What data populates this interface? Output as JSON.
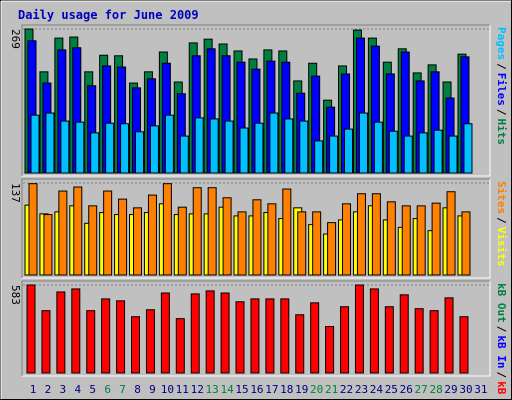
{
  "chart_data": {
    "type": "bar",
    "title": "Daily usage for June 2009",
    "legend_separator": "/",
    "categories": [
      "1",
      "2",
      "3",
      "4",
      "5",
      "6",
      "7",
      "8",
      "9",
      "10",
      "11",
      "12",
      "13",
      "14",
      "15",
      "16",
      "17",
      "18",
      "19",
      "20",
      "21",
      "22",
      "23",
      "24",
      "25",
      "26",
      "27",
      "28",
      "29",
      "30",
      "31"
    ],
    "category_colors": [
      "#000080",
      "#000080",
      "#000080",
      "#000080",
      "#000080",
      "#008040",
      "#008040",
      "#000080",
      "#000080",
      "#000080",
      "#000080",
      "#000080",
      "#008040",
      "#008040",
      "#000080",
      "#000080",
      "#000080",
      "#000080",
      "#000080",
      "#008040",
      "#008040",
      "#000080",
      "#000080",
      "#000080",
      "#000080",
      "#000080",
      "#008040",
      "#008040",
      "#000080",
      "#000080",
      "#000080"
    ],
    "panels": [
      {
        "ylim": [
          0,
          269
        ],
        "yticks": [
          269
        ],
        "series": [
          {
            "name": "Hits",
            "color": "#008040",
            "values": [
              269,
              189,
              252,
              254,
              189,
              220,
              219,
              168,
              189,
              226,
              170,
              243,
              250,
              241,
              228,
              213,
              230,
              228,
              172,
              205,
              136,
              200,
              267,
              252,
              207,
              232,
              187,
              202,
              170,
              222,
              null
            ]
          },
          {
            "name": "Files",
            "color": "#0000ff",
            "values": [
              247,
              168,
              230,
              234,
              163,
              200,
              198,
              159,
              176,
              205,
              148,
              219,
              232,
              219,
              207,
              194,
              209,
              207,
              149,
              181,
              123,
              185,
              252,
              237,
              185,
              226,
              172,
              189,
              140,
              217,
              null
            ]
          },
          {
            "name": "Pages",
            "color": "#00c0ff",
            "values": [
              108,
              112,
              97,
              95,
              75,
              93,
              92,
              77,
              88,
              108,
              69,
              103,
              101,
              97,
              84,
              93,
              112,
              101,
              97,
              60,
              69,
              82,
              112,
              95,
              78,
              69,
              75,
              80,
              69,
              92,
              null
            ]
          }
        ]
      },
      {
        "ylim": [
          0,
          137
        ],
        "yticks": [
          137
        ],
        "series": [
          {
            "name": "Visits",
            "color": "#ffff00",
            "values": [
              104,
              91,
              94,
              103,
              77,
              93,
              90,
              90,
              93,
              106,
              90,
              91,
              91,
              101,
              88,
              88,
              93,
              84,
              100,
              75,
              61,
              82,
              94,
              103,
              82,
              71,
              84,
              66,
              100,
              88,
              null
            ]
          },
          {
            "name": "Sites",
            "color": "#ff8000",
            "values": [
              136,
              90,
              125,
              131,
              103,
              125,
              113,
              100,
              119,
              136,
              101,
              130,
              130,
              115,
              94,
              112,
              106,
              128,
              94,
              94,
              78,
              106,
              121,
              121,
              109,
              103,
              103,
              107,
              124,
              94,
              null
            ]
          }
        ]
      },
      {
        "ylim": [
          0,
          583
        ],
        "yticks": [
          583
        ],
        "series": [
          {
            "name": "kB F",
            "color": "#ff0000",
            "values": [
              583,
              413,
              537,
              557,
              413,
              491,
              478,
              373,
              419,
              530,
              360,
              524,
              544,
              530,
              472,
              491,
              491,
              491,
              386,
              465,
              308,
              439,
              583,
              557,
              439,
              518,
              426,
              413,
              498,
              373,
              null
            ]
          }
        ],
        "legend_only": [
          {
            "name": "kB In",
            "color": "#0000ff"
          },
          {
            "name": "kB Out",
            "color": "#008040"
          }
        ]
      }
    ]
  }
}
